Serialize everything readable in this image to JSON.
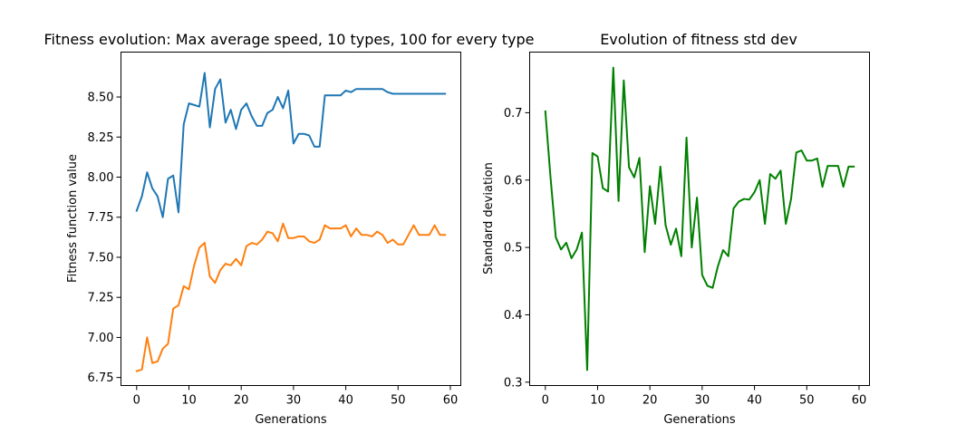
{
  "chart_data": [
    {
      "type": "line",
      "title": "Fitness evolution: Max average speed, 10 types, 100 for every type",
      "xlabel": "Generations",
      "ylabel": "Fitness function value",
      "xlim": [
        -3,
        62
      ],
      "ylim": [
        6.7,
        8.78
      ],
      "xticks": [
        0,
        10,
        20,
        30,
        40,
        50,
        60
      ],
      "xtick_labels": [
        "0",
        "10",
        "20",
        "30",
        "40",
        "50",
        "60"
      ],
      "yticks": [
        6.75,
        7.0,
        7.25,
        7.5,
        7.75,
        8.0,
        8.25,
        8.5
      ],
      "ytick_labels": [
        "6.75",
        "7.00",
        "7.25",
        "7.50",
        "7.75",
        "8.00",
        "8.25",
        "8.50"
      ],
      "grid": false,
      "x": [
        0,
        1,
        2,
        3,
        4,
        5,
        6,
        7,
        8,
        9,
        10,
        11,
        12,
        13,
        14,
        15,
        16,
        17,
        18,
        19,
        20,
        21,
        22,
        23,
        24,
        25,
        26,
        27,
        28,
        29,
        30,
        31,
        32,
        33,
        34,
        35,
        36,
        37,
        38,
        39,
        40,
        41,
        42,
        43,
        44,
        45,
        46,
        47,
        48,
        49,
        50,
        51,
        52,
        53,
        54,
        55,
        56,
        57,
        58,
        59
      ],
      "series": [
        {
          "color": "#1f77b4",
          "values": [
            7.79,
            7.88,
            8.03,
            7.93,
            7.88,
            7.75,
            7.99,
            8.01,
            7.78,
            8.33,
            8.46,
            8.45,
            8.44,
            8.65,
            8.31,
            8.55,
            8.61,
            8.34,
            8.42,
            8.3,
            8.42,
            8.46,
            8.38,
            8.32,
            8.32,
            8.4,
            8.42,
            8.5,
            8.43,
            8.54,
            8.21,
            8.27,
            8.27,
            8.26,
            8.19,
            8.19,
            8.51,
            8.51,
            8.51,
            8.51,
            8.54,
            8.53,
            8.55,
            8.55,
            8.55,
            8.55,
            8.55,
            8.55,
            8.53,
            8.52,
            8.52,
            8.52,
            8.52,
            8.52,
            8.52,
            8.52,
            8.52,
            8.52,
            8.52,
            8.52
          ]
        },
        {
          "color": "#ff7f0e",
          "values": [
            6.79,
            6.8,
            7.0,
            6.84,
            6.85,
            6.93,
            6.96,
            7.18,
            7.2,
            7.32,
            7.3,
            7.45,
            7.56,
            7.59,
            7.38,
            7.34,
            7.42,
            7.46,
            7.45,
            7.49,
            7.45,
            7.57,
            7.59,
            7.58,
            7.61,
            7.66,
            7.65,
            7.6,
            7.71,
            7.62,
            7.62,
            7.63,
            7.63,
            7.6,
            7.59,
            7.61,
            7.7,
            7.68,
            7.68,
            7.68,
            7.7,
            7.63,
            7.68,
            7.64,
            7.64,
            7.63,
            7.66,
            7.64,
            7.59,
            7.61,
            7.58,
            7.58,
            7.64,
            7.7,
            7.64,
            7.64,
            7.64,
            7.7,
            7.64,
            7.64
          ]
        }
      ]
    },
    {
      "type": "line",
      "title": "Evolution of fitness std dev",
      "xlabel": "Generations",
      "ylabel": "Standard deviation",
      "xlim": [
        -3,
        62
      ],
      "ylim": [
        0.295,
        0.79
      ],
      "xticks": [
        0,
        10,
        20,
        30,
        40,
        50,
        60
      ],
      "xtick_labels": [
        "0",
        "10",
        "20",
        "30",
        "40",
        "50",
        "60"
      ],
      "yticks": [
        0.3,
        0.4,
        0.5,
        0.6,
        0.7
      ],
      "ytick_labels": [
        "0.3",
        "0.4",
        "0.5",
        "0.6",
        "0.7"
      ],
      "grid": false,
      "x": [
        0,
        1,
        2,
        3,
        4,
        5,
        6,
        7,
        8,
        9,
        10,
        11,
        12,
        13,
        14,
        15,
        16,
        17,
        18,
        19,
        20,
        21,
        22,
        23,
        24,
        25,
        26,
        27,
        28,
        29,
        30,
        31,
        32,
        33,
        34,
        35,
        36,
        37,
        38,
        39,
        40,
        41,
        42,
        43,
        44,
        45,
        46,
        47,
        48,
        49,
        50,
        51,
        52,
        53,
        54,
        55,
        56,
        57,
        58,
        59
      ],
      "series": [
        {
          "color": "#008000",
          "values": [
            0.702,
            0.603,
            0.515,
            0.497,
            0.507,
            0.484,
            0.497,
            0.522,
            0.318,
            0.64,
            0.635,
            0.588,
            0.583,
            0.767,
            0.569,
            0.748,
            0.619,
            0.604,
            0.633,
            0.493,
            0.591,
            0.535,
            0.62,
            0.533,
            0.504,
            0.528,
            0.487,
            0.663,
            0.5,
            0.574,
            0.459,
            0.443,
            0.44,
            0.472,
            0.496,
            0.487,
            0.558,
            0.568,
            0.572,
            0.571,
            0.582,
            0.6,
            0.535,
            0.609,
            0.602,
            0.614,
            0.535,
            0.572,
            0.641,
            0.644,
            0.629,
            0.629,
            0.632,
            0.59,
            0.621,
            0.621,
            0.621,
            0.59,
            0.62,
            0.62
          ]
        }
      ]
    }
  ]
}
